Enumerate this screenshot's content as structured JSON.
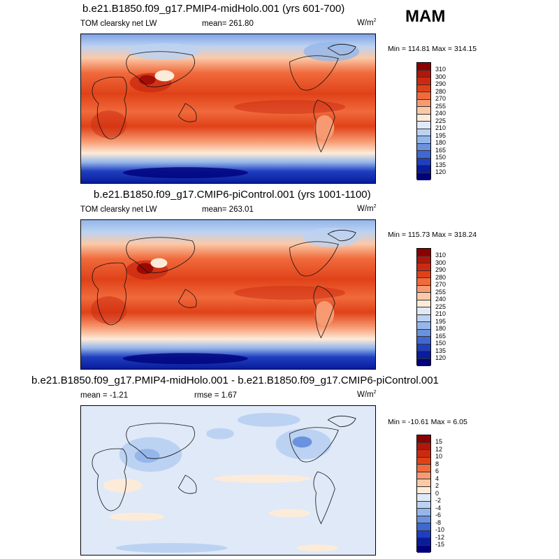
{
  "season": "MAM",
  "panels": [
    {
      "title": "b.e21.B1850.f09_g17.PMIP4-midHolo.001 (yrs 601-700)",
      "left_label": "TOM clearsky net LW",
      "center_label": "mean= 261.80",
      "units": "W/m",
      "units_sup": "2",
      "minmax": "Min = 114.81 Max = 314.15",
      "colorbar_labels": [
        "310",
        "300",
        "290",
        "280",
        "270",
        "255",
        "240",
        "225",
        "210",
        "195",
        "180",
        "165",
        "150",
        "135",
        "120"
      ]
    },
    {
      "title": "b.e21.B1850.f09_g17.CMIP6-piControl.001 (yrs 1001-1100)",
      "left_label": "TOM clearsky net LW",
      "center_label": "mean= 263.01",
      "units": "W/m",
      "units_sup": "2",
      "minmax": "Min = 115.73 Max = 318.24",
      "colorbar_labels": [
        "310",
        "300",
        "290",
        "280",
        "270",
        "255",
        "240",
        "225",
        "210",
        "195",
        "180",
        "165",
        "150",
        "135",
        "120"
      ]
    },
    {
      "title": "b.e21.B1850.f09_g17.PMIP4-midHolo.001 - b.e21.B1850.f09_g17.CMIP6-piControl.001",
      "left_label": "mean =  -1.21",
      "center_label": "rmse =   1.67",
      "units": "W/m",
      "units_sup": "2",
      "minmax": "Min = -10.61 Max =   6.05",
      "colorbar_labels": [
        "15",
        "12",
        "10",
        "8",
        "6",
        "4",
        "2",
        "0",
        "-2",
        "-4",
        "-6",
        "-8",
        "-10",
        "-12",
        "-15"
      ]
    }
  ],
  "colors": {
    "abs_scale": [
      "#8b0000",
      "#b2160b",
      "#cc2a10",
      "#e04218",
      "#f06a3c",
      "#f79a72",
      "#fbc9a7",
      "#fdebd9",
      "#dfe9f8",
      "#bcd2f2",
      "#95b6ea",
      "#6b92de",
      "#4068d2",
      "#1f3fc0",
      "#081c9c",
      "#00007a"
    ],
    "diff_scale": [
      "#8b0000",
      "#b2160b",
      "#cc2a10",
      "#e04218",
      "#f06a3c",
      "#f79a72",
      "#fbc9a7",
      "#fdebd9",
      "#dfe9f8",
      "#bcd2f2",
      "#95b6ea",
      "#6b92de",
      "#4068d2",
      "#1f3fc0",
      "#081c9c",
      "#00007a"
    ]
  }
}
